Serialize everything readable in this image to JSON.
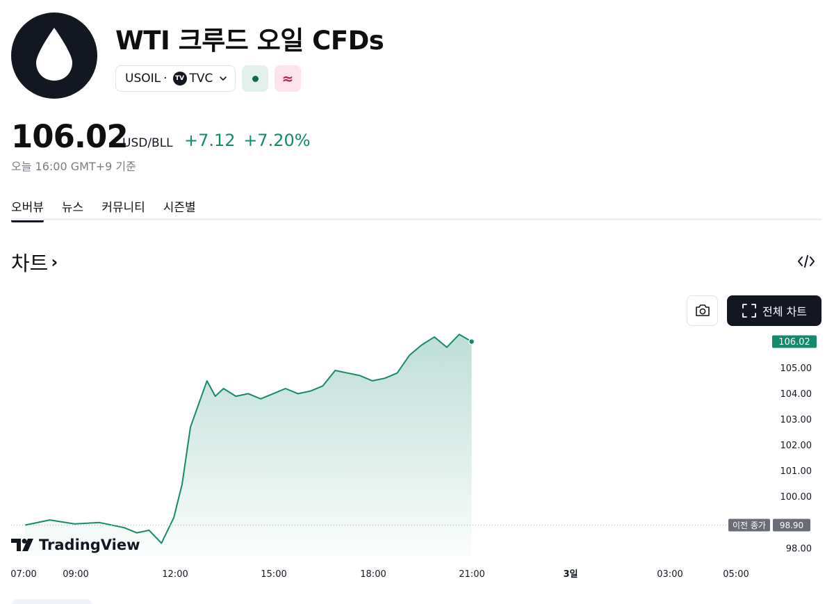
{
  "header": {
    "title": "WTI 크루드 오일 CFDs",
    "symbol": "USOIL",
    "separator": "·",
    "exchange_badge": "TV",
    "exchange": "TVC",
    "market_status_color": "#0f6b52",
    "delay_badge": "≈",
    "logo_icon": "oil-drop-icon"
  },
  "quote": {
    "price": "106.02",
    "currency": "USD/BLL",
    "change": "+7.12",
    "change_percent": "+7.20%",
    "as_of": "오늘 16:00 GMT+9 기준",
    "positive_color": "#138a6c"
  },
  "tabs": [
    {
      "label": "오버뷰",
      "active": true
    },
    {
      "label": "뉴스",
      "active": false
    },
    {
      "label": "커뮤니티",
      "active": false
    },
    {
      "label": "시즌별",
      "active": false
    }
  ],
  "section": {
    "title": "차트",
    "title_arrow": "›"
  },
  "toolbar": {
    "fullscreen_label": "전체 차트",
    "camera_icon": "camera-icon",
    "embed_icon": "code-embed-icon"
  },
  "watermark": {
    "label": "TradingView"
  },
  "chart_data": {
    "type": "area",
    "line_color": "#138a6c",
    "y_ticks": [
      "105.00",
      "104.00",
      "103.00",
      "102.00",
      "101.00",
      "100.00",
      "98.00"
    ],
    "x_ticks": [
      "07:00",
      "09:00",
      "12:00",
      "15:00",
      "18:00",
      "21:00",
      "3일",
      "03:00",
      "05:00"
    ],
    "ylim": [
      97.7,
      106.6
    ],
    "last_price_label": "106.02",
    "previous_close_title": "이전 종가",
    "previous_close_value": "98.90",
    "previous_close": 98.9,
    "series": [
      {
        "x": [
          "07:00",
          "07:30",
          "08:00",
          "08:30",
          "09:00",
          "09:15",
          "09:30",
          "09:45",
          "10:00",
          "10:10",
          "10:20",
          "10:30",
          "10:40",
          "10:50",
          "11:00",
          "11:15",
          "11:30",
          "11:45",
          "12:00",
          "12:15",
          "12:30",
          "12:45",
          "13:00",
          "13:15",
          "13:30",
          "13:45",
          "14:00",
          "14:15",
          "14:30",
          "14:45",
          "15:00",
          "15:15",
          "15:30",
          "15:45",
          "16:00"
        ],
        "values": [
          98.9,
          99.1,
          98.95,
          99.0,
          98.8,
          98.6,
          98.7,
          98.2,
          99.2,
          100.5,
          102.7,
          103.6,
          104.5,
          103.9,
          104.2,
          103.9,
          104.0,
          103.8,
          104.0,
          104.2,
          104.0,
          104.1,
          104.3,
          104.9,
          104.8,
          104.7,
          104.5,
          104.6,
          104.8,
          105.5,
          105.9,
          106.2,
          105.8,
          106.3,
          106.02
        ]
      }
    ]
  }
}
